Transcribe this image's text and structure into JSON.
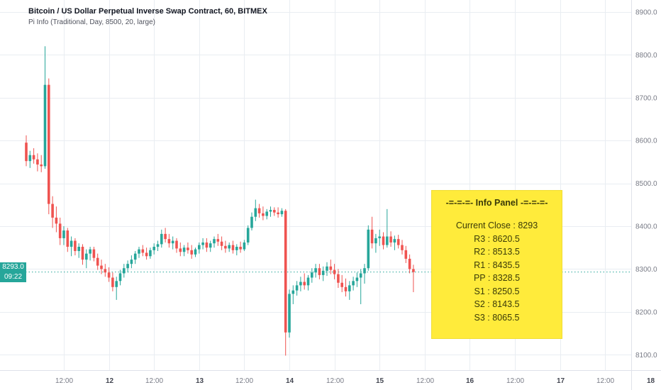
{
  "header": {
    "title": "Bitcoin / US Dollar Perpetual Inverse Swap Contract, 60, BITMEX",
    "subtitle": "Pi Info (Traditional, Day, 8500, 20, large)"
  },
  "price_line": {
    "price": 8293,
    "label": "8293.0",
    "countdown": "09:22",
    "color": "#26a69a"
  },
  "info_panel": {
    "title": "-=-=-=- Info Panel -=-=-=-",
    "bg": "#ffeb3b",
    "text_color": "#3a3a08",
    "lines": [
      "Current Close : 8293",
      "R3 : 8620.5",
      "R2 : 8513.5",
      "R1 : 8435.5",
      "PP : 8328.5",
      "S1 : 8250.5",
      "S2 : 8143.5",
      "S3 : 8065.5"
    ]
  },
  "chart_data": {
    "type": "candlestick",
    "title": "Bitcoin / US Dollar Perpetual Inverse Swap Contract, 60, BITMEX",
    "exchange": "BITMEX",
    "interval_minutes": 60,
    "up_color": "#26a69a",
    "down_color": "#ef5350",
    "grid_color": "#e9edf2",
    "axis_line_color": "#dfe2ea",
    "ylim": [
      8064,
      8928
    ],
    "y_ticks": [
      8900,
      8800,
      8700,
      8600,
      8500,
      8400,
      8300,
      8200,
      8100
    ],
    "x_ticks": [
      {
        "label": "12:00",
        "i": 10,
        "major": false
      },
      {
        "label": "12",
        "i": 22,
        "major": true
      },
      {
        "label": "12:00",
        "i": 34,
        "major": false
      },
      {
        "label": "13",
        "i": 46,
        "major": true
      },
      {
        "label": "12:00",
        "i": 58,
        "major": false
      },
      {
        "label": "14",
        "i": 70,
        "major": true
      },
      {
        "label": "12:00",
        "i": 82,
        "major": false
      },
      {
        "label": "15",
        "i": 94,
        "major": true
      },
      {
        "label": "12:00",
        "i": 106,
        "major": false
      },
      {
        "label": "16",
        "i": 118,
        "major": true
      },
      {
        "label": "12:00",
        "i": 130,
        "major": false
      },
      {
        "label": "17",
        "i": 142,
        "major": true
      },
      {
        "label": "12:00",
        "i": 154,
        "major": false
      },
      {
        "label": "18",
        "i": 166,
        "major": true
      }
    ],
    "x0": 37,
    "dx": 5.3,
    "candles": [
      [
        8595,
        8612,
        8540,
        8552
      ],
      [
        8552,
        8576,
        8536,
        8566
      ],
      [
        8566,
        8582,
        8546,
        8556
      ],
      [
        8556,
        8570,
        8528,
        8544
      ],
      [
        8544,
        8566,
        8526,
        8540
      ],
      [
        8540,
        8820,
        8534,
        8730
      ],
      [
        8730,
        8745,
        8428,
        8452
      ],
      [
        8452,
        8470,
        8396,
        8420
      ],
      [
        8420,
        8446,
        8386,
        8406
      ],
      [
        8406,
        8420,
        8356,
        8372
      ],
      [
        8372,
        8400,
        8356,
        8390
      ],
      [
        8390,
        8396,
        8340,
        8352
      ],
      [
        8352,
        8376,
        8330,
        8366
      ],
      [
        8366,
        8372,
        8332,
        8342
      ],
      [
        8342,
        8360,
        8326,
        8352
      ],
      [
        8352,
        8358,
        8310,
        8322
      ],
      [
        8322,
        8346,
        8302,
        8336
      ],
      [
        8336,
        8352,
        8320,
        8346
      ],
      [
        8346,
        8352,
        8318,
        8326
      ],
      [
        8326,
        8336,
        8298,
        8308
      ],
      [
        8308,
        8322,
        8288,
        8300
      ],
      [
        8300,
        8312,
        8282,
        8292
      ],
      [
        8292,
        8304,
        8270,
        8280
      ],
      [
        8280,
        8292,
        8248,
        8258
      ],
      [
        8258,
        8282,
        8228,
        8272
      ],
      [
        8272,
        8298,
        8262,
        8290
      ],
      [
        8290,
        8312,
        8280,
        8302
      ],
      [
        8302,
        8320,
        8292,
        8312
      ],
      [
        8312,
        8332,
        8302,
        8322
      ],
      [
        8322,
        8342,
        8312,
        8336
      ],
      [
        8336,
        8352,
        8326,
        8346
      ],
      [
        8346,
        8356,
        8330,
        8338
      ],
      [
        8338,
        8350,
        8322,
        8330
      ],
      [
        8330,
        8350,
        8324,
        8344
      ],
      [
        8344,
        8360,
        8334,
        8352
      ],
      [
        8352,
        8366,
        8342,
        8358
      ],
      [
        8358,
        8392,
        8350,
        8382
      ],
      [
        8382,
        8396,
        8362,
        8370
      ],
      [
        8370,
        8382,
        8350,
        8360
      ],
      [
        8360,
        8376,
        8346,
        8366
      ],
      [
        8366,
        8372,
        8338,
        8348
      ],
      [
        8348,
        8362,
        8330,
        8340
      ],
      [
        8340,
        8356,
        8330,
        8350
      ],
      [
        8350,
        8362,
        8336,
        8344
      ],
      [
        8344,
        8356,
        8324,
        8334
      ],
      [
        8334,
        8350,
        8328,
        8346
      ],
      [
        8346,
        8362,
        8336,
        8356
      ],
      [
        8356,
        8372,
        8346,
        8362
      ],
      [
        8362,
        8372,
        8340,
        8350
      ],
      [
        8350,
        8366,
        8340,
        8360
      ],
      [
        8360,
        8376,
        8350,
        8370
      ],
      [
        8370,
        8382,
        8354,
        8364
      ],
      [
        8364,
        8376,
        8344,
        8354
      ],
      [
        8354,
        8366,
        8338,
        8348
      ],
      [
        8348,
        8362,
        8340,
        8356
      ],
      [
        8356,
        8366,
        8336,
        8344
      ],
      [
        8344,
        8358,
        8332,
        8352
      ],
      [
        8352,
        8364,
        8338,
        8346
      ],
      [
        8346,
        8368,
        8342,
        8362
      ],
      [
        8362,
        8402,
        8356,
        8396
      ],
      [
        8396,
        8432,
        8390,
        8422
      ],
      [
        8422,
        8462,
        8412,
        8442
      ],
      [
        8442,
        8452,
        8420,
        8430
      ],
      [
        8430,
        8446,
        8414,
        8424
      ],
      [
        8424,
        8440,
        8416,
        8434
      ],
      [
        8434,
        8446,
        8422,
        8438
      ],
      [
        8438,
        8444,
        8424,
        8432
      ],
      [
        8432,
        8444,
        8420,
        8428
      ],
      [
        8428,
        8442,
        8422,
        8436
      ],
      [
        8436,
        8440,
        8098,
        8152
      ],
      [
        8152,
        8252,
        8140,
        8242
      ],
      [
        8242,
        8262,
        8218,
        8250
      ],
      [
        8250,
        8272,
        8238,
        8262
      ],
      [
        8262,
        8282,
        8248,
        8270
      ],
      [
        8270,
        8290,
        8252,
        8262
      ],
      [
        8262,
        8286,
        8250,
        8280
      ],
      [
        8280,
        8302,
        8268,
        8292
      ],
      [
        8292,
        8312,
        8280,
        8302
      ],
      [
        8302,
        8312,
        8276,
        8286
      ],
      [
        8286,
        8306,
        8272,
        8296
      ],
      [
        8296,
        8316,
        8284,
        8306
      ],
      [
        8306,
        8322,
        8288,
        8298
      ],
      [
        8298,
        8312,
        8276,
        8288
      ],
      [
        8288,
        8300,
        8256,
        8268
      ],
      [
        8268,
        8286,
        8246,
        8258
      ],
      [
        8258,
        8278,
        8236,
        8248
      ],
      [
        8248,
        8272,
        8228,
        8262
      ],
      [
        8262,
        8282,
        8250,
        8272
      ],
      [
        8272,
        8292,
        8258,
        8280
      ],
      [
        8280,
        8300,
        8218,
        8290
      ],
      [
        8290,
        8312,
        8266,
        8302
      ],
      [
        8302,
        8402,
        8296,
        8392
      ],
      [
        8392,
        8422,
        8348,
        8360
      ],
      [
        8360,
        8382,
        8338,
        8372
      ],
      [
        8372,
        8392,
        8354,
        8376
      ],
      [
        8376,
        8386,
        8346,
        8356
      ],
      [
        8356,
        8440,
        8350,
        8376
      ],
      [
        8376,
        8388,
        8352,
        8362
      ],
      [
        8362,
        8378,
        8344,
        8370
      ],
      [
        8370,
        8380,
        8348,
        8356
      ],
      [
        8356,
        8368,
        8334,
        8344
      ],
      [
        8344,
        8354,
        8314,
        8324
      ],
      [
        8324,
        8334,
        8290,
        8300
      ],
      [
        8300,
        8310,
        8246,
        8293
      ]
    ]
  }
}
